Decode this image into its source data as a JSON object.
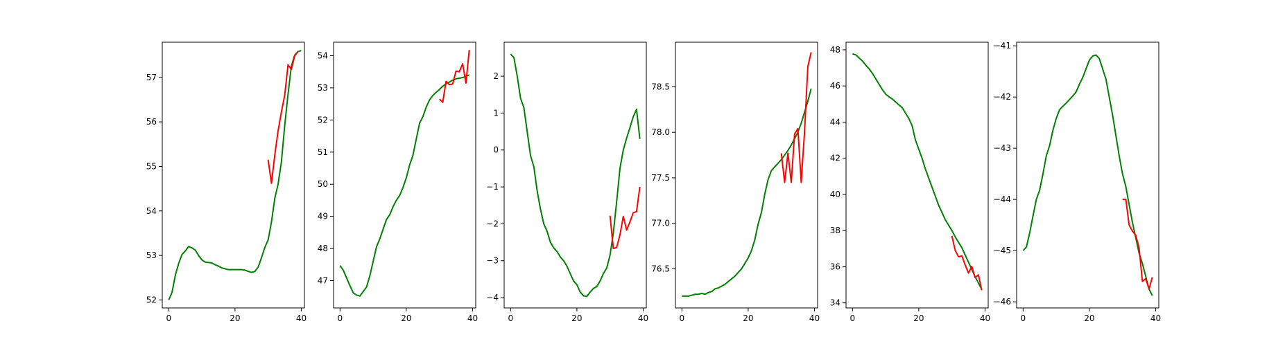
{
  "colors": {
    "green_series": "#008000",
    "red_series": "#ff0000",
    "axes": "#000000",
    "background": "#ffffff"
  },
  "chart_data": [
    {
      "type": "line",
      "xlim": [
        -1.95,
        40.95
      ],
      "ylim": [
        51.82,
        57.79
      ],
      "xticks": [
        0,
        20,
        40
      ],
      "yticks": [
        52,
        53,
        54,
        55,
        56,
        57
      ],
      "grid": false,
      "legend": "none",
      "series": [
        {
          "color": "green",
          "x_start": 0,
          "values": [
            52.0,
            52.17,
            52.56,
            52.82,
            53.02,
            53.1,
            53.2,
            53.17,
            53.12,
            53.0,
            52.9,
            52.85,
            52.84,
            52.83,
            52.79,
            52.76,
            52.72,
            52.7,
            52.68,
            52.68,
            52.68,
            52.68,
            52.68,
            52.67,
            52.64,
            52.62,
            52.64,
            52.74,
            52.95,
            53.18,
            53.35,
            53.75,
            54.28,
            54.6,
            55.1,
            55.92,
            56.62,
            57.25,
            57.5,
            57.58,
            57.6
          ]
        },
        {
          "color": "red",
          "x_start": 30,
          "values": [
            55.15,
            54.62,
            55.25,
            55.8,
            56.22,
            56.6,
            57.28,
            57.18,
            57.48,
            57.58
          ]
        }
      ]
    },
    {
      "type": "line",
      "xlim": [
        -1.95,
        40.95
      ],
      "ylim": [
        46.15,
        54.42
      ],
      "xticks": [
        0,
        20,
        40
      ],
      "yticks": [
        47,
        48,
        49,
        50,
        51,
        52,
        53,
        54
      ],
      "grid": false,
      "legend": "none",
      "series": [
        {
          "color": "green",
          "x_start": 0,
          "values": [
            47.47,
            47.32,
            47.08,
            46.84,
            46.62,
            46.55,
            46.52,
            46.66,
            46.8,
            47.15,
            47.6,
            48.05,
            48.3,
            48.6,
            48.9,
            49.05,
            49.3,
            49.5,
            49.65,
            49.9,
            50.2,
            50.6,
            50.9,
            51.4,
            51.9,
            52.1,
            52.4,
            52.62,
            52.76,
            52.86,
            52.95,
            53.05,
            53.12,
            53.18,
            53.24,
            53.28,
            53.3,
            53.32,
            53.36,
            53.4
          ]
        },
        {
          "color": "red",
          "x_start": 30,
          "values": [
            52.65,
            52.55,
            53.2,
            53.1,
            53.12,
            53.52,
            53.5,
            53.75,
            53.15,
            54.18
          ]
        }
      ]
    },
    {
      "type": "line",
      "xlim": [
        -1.95,
        40.95
      ],
      "ylim": [
        -4.28,
        2.92
      ],
      "xticks": [
        0,
        20,
        40
      ],
      "yticks": [
        -4,
        -3,
        -2,
        -1,
        0,
        1,
        2
      ],
      "grid": false,
      "legend": "none",
      "series": [
        {
          "color": "green",
          "x_start": 0,
          "values": [
            2.6,
            2.5,
            2.0,
            1.4,
            1.15,
            0.5,
            -0.15,
            -0.45,
            -1.1,
            -1.6,
            -2.0,
            -2.2,
            -2.5,
            -2.65,
            -2.75,
            -2.9,
            -3.0,
            -3.15,
            -3.35,
            -3.55,
            -3.65,
            -3.85,
            -3.95,
            -3.97,
            -3.85,
            -3.75,
            -3.7,
            -3.55,
            -3.35,
            -3.2,
            -2.85,
            -2.25,
            -1.4,
            -0.5,
            0.0,
            0.32,
            0.6,
            0.9,
            1.1,
            0.3
          ]
        },
        {
          "color": "red",
          "x_start": 30,
          "values": [
            -1.78,
            -2.67,
            -2.64,
            -2.3,
            -1.8,
            -2.17,
            -1.95,
            -1.7,
            -1.67,
            -1.0
          ]
        }
      ]
    },
    {
      "type": "line",
      "xlim": [
        -1.95,
        40.95
      ],
      "ylim": [
        76.07,
        78.99
      ],
      "xticks": [
        0,
        20,
        40
      ],
      "yticks": [
        76.5,
        77.0,
        77.5,
        78.0,
        78.5
      ],
      "grid": false,
      "legend": "none",
      "series": [
        {
          "color": "green",
          "x_start": 0,
          "values": [
            76.2,
            76.2,
            76.2,
            76.21,
            76.22,
            76.22,
            76.23,
            76.22,
            76.24,
            76.25,
            76.28,
            76.29,
            76.31,
            76.33,
            76.36,
            76.39,
            76.42,
            76.46,
            76.5,
            76.56,
            76.62,
            76.7,
            76.82,
            76.99,
            77.12,
            77.32,
            77.48,
            77.58,
            77.62,
            77.66,
            77.7,
            77.75,
            77.8,
            77.86,
            77.93,
            78.0,
            78.1,
            78.22,
            78.34,
            78.48
          ]
        },
        {
          "color": "red",
          "x_start": 30,
          "values": [
            77.77,
            77.45,
            77.77,
            77.45,
            77.98,
            78.04,
            77.45,
            78.0,
            78.72,
            78.88
          ]
        }
      ]
    },
    {
      "type": "line",
      "xlim": [
        -1.95,
        40.95
      ],
      "ylim": [
        33.72,
        48.42
      ],
      "xticks": [
        0,
        20,
        40
      ],
      "yticks": [
        34,
        36,
        38,
        40,
        42,
        44,
        46,
        48
      ],
      "grid": false,
      "legend": "none",
      "series": [
        {
          "color": "green",
          "x_start": 0,
          "values": [
            47.78,
            47.72,
            47.55,
            47.38,
            47.15,
            46.95,
            46.7,
            46.4,
            46.1,
            45.8,
            45.55,
            45.4,
            45.28,
            45.12,
            44.95,
            44.8,
            44.5,
            44.2,
            43.8,
            43.0,
            42.5,
            42.0,
            41.4,
            40.9,
            40.4,
            39.9,
            39.4,
            39.0,
            38.6,
            38.3,
            38.0,
            37.65,
            37.35,
            37.05,
            36.65,
            36.25,
            35.85,
            35.45,
            35.1,
            34.75
          ]
        },
        {
          "color": "red",
          "x_start": 30,
          "values": [
            37.7,
            36.9,
            36.55,
            36.6,
            36.1,
            35.65,
            36.02,
            35.4,
            35.55,
            34.7
          ]
        }
      ]
    },
    {
      "type": "line",
      "xlim": [
        -1.95,
        40.95
      ],
      "ylim": [
        -46.12,
        -40.93
      ],
      "xticks": [
        0,
        20,
        40
      ],
      "yticks": [
        -46,
        -45,
        -44,
        -43,
        -42,
        -41
      ],
      "grid": false,
      "legend": "none",
      "series": [
        {
          "color": "green",
          "x_start": 0,
          "values": [
            -45.0,
            -44.93,
            -44.65,
            -44.32,
            -44.0,
            -43.82,
            -43.5,
            -43.15,
            -42.95,
            -42.65,
            -42.42,
            -42.25,
            -42.18,
            -42.12,
            -42.05,
            -41.98,
            -41.9,
            -41.75,
            -41.62,
            -41.45,
            -41.28,
            -41.2,
            -41.18,
            -41.25,
            -41.45,
            -41.65,
            -42.0,
            -42.35,
            -42.75,
            -43.15,
            -43.5,
            -43.75,
            -44.1,
            -44.45,
            -44.75,
            -45.05,
            -45.25,
            -45.5,
            -45.75,
            -45.88
          ]
        },
        {
          "color": "red",
          "x_start": 30,
          "values": [
            -44.0,
            -44.0,
            -44.5,
            -44.62,
            -44.7,
            -44.95,
            -45.6,
            -45.55,
            -45.75,
            -45.52
          ]
        }
      ]
    }
  ]
}
